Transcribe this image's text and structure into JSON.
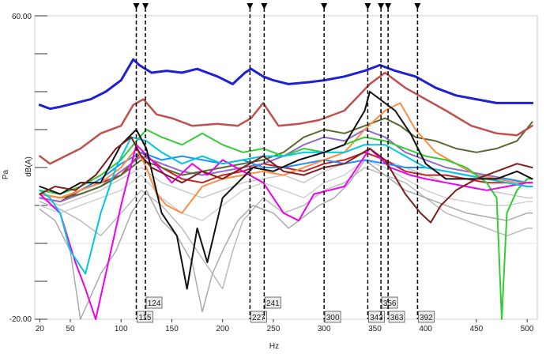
{
  "chart_data": {
    "type": "line",
    "title": "",
    "xlabel": "Hz",
    "ylabel_outer": "Pa",
    "ylabel_inner": "dB(A)",
    "xlim": [
      15,
      510
    ],
    "ylim": [
      -20,
      60
    ],
    "y_tick_labels": [
      "60.00",
      "-20.00"
    ],
    "y_ticks": [
      -20,
      -10,
      0,
      10,
      20,
      30,
      40,
      50,
      60
    ],
    "x_ticks": [
      20,
      50,
      100,
      150,
      200,
      250,
      300,
      350,
      400,
      450,
      500
    ],
    "grid": false,
    "markers": [
      {
        "x": 115,
        "label": "115"
      },
      {
        "x": 124,
        "label": "124"
      },
      {
        "x": 227,
        "label": "227"
      },
      {
        "x": 241,
        "label": "241"
      },
      {
        "x": 300,
        "label": "300"
      },
      {
        "x": 343,
        "label": "343"
      },
      {
        "x": 356,
        "label": "356"
      },
      {
        "x": 363,
        "label": "363"
      },
      {
        "x": 392,
        "label": "392"
      }
    ],
    "series": [
      {
        "color": "#1f1fd6",
        "width": 3,
        "x": [
          20,
          30,
          40,
          55,
          70,
          85,
          100,
          112,
          118,
          130,
          145,
          160,
          175,
          195,
          210,
          222,
          228,
          240,
          250,
          265,
          285,
          300,
          320,
          340,
          355,
          370,
          390,
          410,
          430,
          450,
          470,
          490,
          505
        ],
        "y": [
          36.5,
          35.5,
          36,
          37,
          38,
          40,
          43,
          48.5,
          47,
          45,
          45.5,
          45,
          46,
          44,
          42,
          45,
          46,
          44,
          43,
          42,
          42.5,
          43,
          44,
          45.5,
          47,
          45.5,
          44,
          41,
          39,
          38,
          37,
          37,
          37
        ]
      },
      {
        "color": "#c0504d",
        "width": 2.5,
        "x": [
          20,
          30,
          45,
          60,
          80,
          100,
          112,
          122,
          135,
          150,
          170,
          195,
          215,
          228,
          240,
          255,
          275,
          295,
          320,
          345,
          360,
          380,
          400,
          420,
          445,
          470,
          490,
          505
        ],
        "y": [
          23,
          21,
          23,
          25,
          29,
          31,
          36.5,
          38,
          34,
          33,
          31,
          31.5,
          31,
          33,
          37,
          31,
          31.5,
          32.5,
          35,
          42,
          45,
          41,
          38,
          35,
          31,
          29,
          28.5,
          31
        ]
      },
      {
        "color": "#7f1d1d",
        "width": 2,
        "x": [
          20,
          35,
          55,
          75,
          95,
          110,
          120,
          130,
          145,
          160,
          180,
          200,
          220,
          240,
          260,
          280,
          300,
          320,
          345,
          360,
          380,
          395,
          405,
          415,
          430,
          450,
          470,
          490,
          505
        ],
        "y": [
          13,
          15,
          14,
          18,
          25,
          28,
          23,
          20,
          18,
          16,
          19,
          17,
          20,
          23,
          19,
          18,
          20,
          21,
          25,
          22,
          13,
          8,
          5.5,
          10,
          14,
          17,
          19,
          21,
          20
        ]
      },
      {
        "color": "#111111",
        "width": 2,
        "x": [
          20,
          40,
          60,
          80,
          100,
          115,
          125,
          140,
          155,
          165,
          175,
          185,
          200,
          215,
          230,
          250,
          275,
          300,
          320,
          340,
          345,
          355,
          370,
          385,
          400,
          420,
          445,
          470,
          490,
          505
        ],
        "y": [
          15,
          13,
          16,
          16,
          26,
          30,
          25,
          8,
          2,
          -12,
          4,
          -5,
          12,
          16,
          20,
          19,
          22,
          24,
          26,
          35,
          40,
          38,
          35,
          29,
          21,
          17,
          17,
          17,
          19,
          17
        ]
      },
      {
        "color": "#00c8dc",
        "width": 2,
        "x": [
          20,
          30,
          40,
          50,
          65,
          80,
          95,
          110,
          125,
          140,
          160,
          180,
          200,
          220,
          240,
          260,
          280,
          300,
          320,
          340,
          360,
          380,
          400,
          420,
          440,
          460,
          480,
          500,
          505
        ],
        "y": [
          14,
          12,
          8,
          -2,
          -8,
          8,
          20,
          28,
          27,
          24,
          21,
          23,
          21,
          22,
          23,
          23,
          24,
          24,
          24,
          26,
          26,
          23,
          20,
          19,
          18,
          17,
          16,
          15,
          15
        ]
      },
      {
        "color": "#ee00ee",
        "width": 2,
        "x": [
          20,
          40,
          55,
          65,
          75,
          85,
          100,
          115,
          130,
          150,
          170,
          185,
          200,
          220,
          240,
          260,
          275,
          290,
          305,
          320,
          345,
          365,
          385,
          400,
          420,
          440,
          460,
          480,
          500,
          505
        ],
        "y": [
          13,
          8,
          -5,
          -12,
          -20,
          -8,
          10,
          26,
          22,
          16,
          21,
          18,
          22,
          19,
          16,
          8,
          6,
          13,
          14,
          15,
          25,
          20,
          18,
          17,
          16,
          15,
          14,
          15,
          16,
          16
        ]
      },
      {
        "color": "#33cc33",
        "width": 2,
        "x": [
          20,
          40,
          60,
          80,
          100,
          115,
          125,
          140,
          160,
          180,
          200,
          220,
          240,
          260,
          280,
          300,
          320,
          340,
          360,
          380,
          400,
          420,
          440,
          460,
          470,
          475,
          480,
          490,
          500,
          505
        ],
        "y": [
          14,
          13,
          15,
          18,
          22,
          27,
          30,
          28,
          26,
          29,
          26,
          24,
          25,
          23,
          25,
          24,
          26,
          28,
          27,
          25,
          23,
          22,
          20,
          16,
          12,
          -20,
          8,
          14,
          17,
          17
        ]
      },
      {
        "color": "#ff8c42",
        "width": 2,
        "x": [
          20,
          40,
          60,
          80,
          100,
          115,
          125,
          135,
          145,
          160,
          180,
          200,
          220,
          240,
          260,
          280,
          300,
          320,
          340,
          360,
          375,
          390,
          410,
          430,
          450,
          470,
          490,
          505
        ],
        "y": [
          13,
          12,
          14,
          16,
          20,
          25,
          20,
          13,
          10,
          8,
          15,
          17,
          18,
          19,
          18,
          20,
          22,
          24,
          30,
          35,
          37,
          30,
          24,
          21,
          18,
          17,
          16,
          16
        ]
      },
      {
        "color": "#556b2f",
        "width": 2,
        "x": [
          20,
          40,
          60,
          80,
          100,
          120,
          140,
          160,
          180,
          200,
          220,
          240,
          260,
          280,
          300,
          320,
          340,
          360,
          375,
          390,
          410,
          430,
          450,
          470,
          490,
          505
        ],
        "y": [
          13,
          12,
          13,
          15,
          18,
          22,
          20,
          18,
          19,
          20,
          21,
          22,
          24,
          28,
          30,
          29,
          31,
          33,
          31,
          28,
          27,
          25,
          24,
          25,
          27,
          32
        ]
      },
      {
        "color": "#1e90ff",
        "width": 2,
        "x": [
          20,
          40,
          60,
          80,
          100,
          120,
          140,
          160,
          180,
          200,
          220,
          240,
          260,
          280,
          300,
          320,
          340,
          360,
          380,
          400,
          420,
          440,
          460,
          480,
          500,
          505
        ],
        "y": [
          13,
          12,
          14,
          17,
          21,
          24,
          22,
          23,
          22,
          21,
          22,
          20,
          20,
          21,
          22,
          21,
          22,
          21,
          20,
          20,
          19,
          18,
          17,
          17,
          16,
          16
        ]
      },
      {
        "color": "#8e6bc8",
        "width": 2,
        "x": [
          20,
          40,
          60,
          80,
          100,
          120,
          140,
          160,
          180,
          200,
          220,
          240,
          260,
          280,
          300,
          320,
          340,
          360,
          380,
          400,
          420,
          440,
          460,
          480,
          500,
          505
        ],
        "y": [
          12,
          11,
          13,
          15,
          19,
          23,
          21,
          19,
          18,
          19,
          20,
          21,
          23,
          26,
          28,
          27,
          30,
          28,
          24,
          22,
          20,
          19,
          18,
          17,
          16,
          16
        ]
      },
      {
        "color": "#cc2222",
        "width": 2,
        "x": [
          20,
          40,
          60,
          80,
          100,
          120,
          140,
          160,
          180,
          200,
          220,
          240,
          260,
          280,
          300,
          320,
          340,
          360,
          380,
          400,
          420,
          440,
          460,
          480,
          500,
          505
        ],
        "y": [
          12,
          11,
          14,
          16,
          18,
          24,
          20,
          17,
          16,
          18,
          19,
          21,
          20,
          19,
          21,
          22,
          24,
          22,
          19,
          18,
          18,
          17,
          16,
          16,
          15,
          15
        ]
      },
      {
        "color": "#aaaaaa",
        "width": 1.5,
        "x": [
          20,
          35,
          50,
          60,
          70,
          80,
          95,
          110,
          125,
          140,
          155,
          170,
          180,
          190,
          200,
          215,
          230,
          250,
          265,
          280,
          295,
          310,
          325,
          340,
          360,
          380,
          400,
          420,
          440,
          460,
          480,
          500,
          505
        ],
        "y": [
          9,
          6,
          -2,
          -20,
          -14,
          -8,
          -2,
          8,
          14,
          6,
          2,
          -5,
          -18,
          -8,
          -2,
          6,
          10,
          8,
          4,
          7,
          10,
          12,
          16,
          22,
          18,
          14,
          12,
          10,
          8,
          7,
          6,
          8,
          8
        ]
      },
      {
        "color": "#bbbbbb",
        "width": 1.5,
        "x": [
          20,
          40,
          60,
          80,
          100,
          120,
          140,
          160,
          180,
          200,
          210,
          220,
          240,
          260,
          280,
          300,
          320,
          340,
          360,
          380,
          400,
          420,
          440,
          460,
          480,
          500,
          505
        ],
        "y": [
          11,
          9,
          6,
          2,
          8,
          14,
          10,
          4,
          -4,
          -12,
          -2,
          6,
          12,
          8,
          10,
          14,
          16,
          20,
          18,
          16,
          12,
          8,
          6,
          4,
          2,
          4,
          4
        ]
      },
      {
        "color": "#c8c8c8",
        "width": 1.5,
        "x": [
          20,
          40,
          60,
          80,
          100,
          120,
          140,
          160,
          180,
          200,
          220,
          240,
          260,
          280,
          300,
          320,
          340,
          360,
          380,
          400,
          420,
          440,
          460,
          480,
          500,
          505
        ],
        "y": [
          12,
          10,
          12,
          14,
          17,
          20,
          16,
          14,
          12,
          14,
          16,
          17,
          18,
          16,
          19,
          21,
          24,
          22,
          20,
          18,
          16,
          15,
          14,
          13,
          12,
          12
        ]
      },
      {
        "color": "#d0d0d0",
        "width": 1.5,
        "x": [
          20,
          40,
          60,
          80,
          100,
          120,
          140,
          160,
          180,
          200,
          220,
          240,
          260,
          280,
          300,
          320,
          340,
          360,
          380,
          400,
          420,
          440,
          460,
          480,
          500,
          505
        ],
        "y": [
          10,
          8,
          10,
          12,
          14,
          18,
          12,
          8,
          6,
          10,
          14,
          16,
          14,
          12,
          16,
          18,
          22,
          20,
          17,
          14,
          12,
          11,
          10,
          10,
          11,
          11
        ]
      }
    ]
  }
}
